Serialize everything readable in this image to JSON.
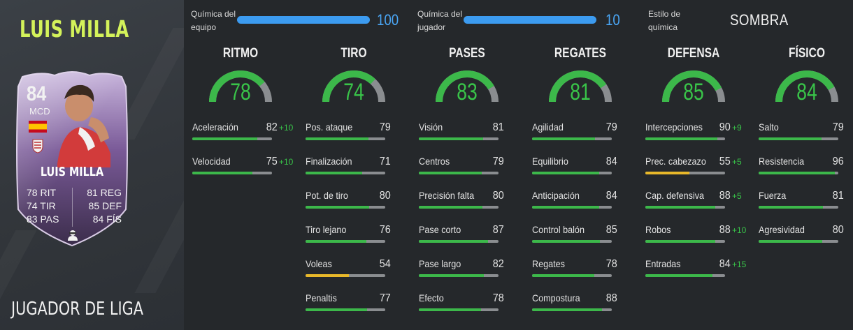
{
  "player": {
    "name_title": "LUIS MILLA",
    "card_type": "JUGADOR DE LIGA",
    "card": {
      "rating": "84",
      "position": "MCD",
      "name": "LUIS MILLA",
      "stats": [
        {
          "left": "78 RIT",
          "right": "81 REG"
        },
        {
          "left": "74 TIR",
          "right": "85 DEF"
        },
        {
          "left": "83 PAS",
          "right": "84 FÍS"
        }
      ],
      "flag_colors": [
        "#c60b1e",
        "#ffc400",
        "#c60b1e"
      ],
      "card_colors": [
        "#c9b6db",
        "#6f4f8c",
        "#3a2a4a"
      ]
    }
  },
  "chemistry": {
    "team_label_1": "Química del",
    "team_label_2": "equipo",
    "team_value": "100",
    "team_fraction": 1.0,
    "player_label_1": "Química del",
    "player_label_2": "jugador",
    "player_value": "10",
    "player_fraction": 1.0,
    "style_label_1": "Estilo de",
    "style_label_2": "química",
    "style_value": "SOMBRA",
    "bar_color": "#3c9bf0"
  },
  "categories": [
    {
      "title": "RITMO",
      "value": "78",
      "attributes": [
        {
          "name": "Aceleración",
          "value": "82",
          "boost": "+10"
        },
        {
          "name": "Velocidad",
          "value": "75",
          "boost": "+10"
        }
      ]
    },
    {
      "title": "TIRO",
      "value": "74",
      "attributes": [
        {
          "name": "Pos. ataque",
          "value": "79",
          "boost": ""
        },
        {
          "name": "Finalización",
          "value": "71",
          "boost": ""
        },
        {
          "name": "Pot. de tiro",
          "value": "80",
          "boost": ""
        },
        {
          "name": "Tiro lejano",
          "value": "76",
          "boost": ""
        },
        {
          "name": "Voleas",
          "value": "54",
          "boost": ""
        },
        {
          "name": "Penaltis",
          "value": "77",
          "boost": ""
        }
      ]
    },
    {
      "title": "PASES",
      "value": "83",
      "attributes": [
        {
          "name": "Visión",
          "value": "81",
          "boost": ""
        },
        {
          "name": "Centros",
          "value": "79",
          "boost": ""
        },
        {
          "name": "Precisión falta",
          "value": "80",
          "boost": ""
        },
        {
          "name": "Pase corto",
          "value": "87",
          "boost": ""
        },
        {
          "name": "Pase largo",
          "value": "82",
          "boost": ""
        },
        {
          "name": "Efecto",
          "value": "78",
          "boost": ""
        }
      ]
    },
    {
      "title": "REGATES",
      "value": "81",
      "attributes": [
        {
          "name": "Agilidad",
          "value": "79",
          "boost": ""
        },
        {
          "name": "Equilibrio",
          "value": "84",
          "boost": ""
        },
        {
          "name": "Anticipación",
          "value": "84",
          "boost": ""
        },
        {
          "name": "Control balón",
          "value": "85",
          "boost": ""
        },
        {
          "name": "Regates",
          "value": "78",
          "boost": ""
        },
        {
          "name": "Compostura",
          "value": "88",
          "boost": ""
        }
      ]
    },
    {
      "title": "DEFENSA",
      "value": "85",
      "attributes": [
        {
          "name": "Intercepciones",
          "value": "90",
          "boost": "+9"
        },
        {
          "name": "Prec. cabezazo",
          "value": "55",
          "boost": "+5"
        },
        {
          "name": "Cap. defensiva",
          "value": "88",
          "boost": "+5"
        },
        {
          "name": "Robos",
          "value": "88",
          "boost": "+10"
        },
        {
          "name": "Entradas",
          "value": "84",
          "boost": "+15"
        }
      ]
    },
    {
      "title": "FÍSICO",
      "value": "84",
      "attributes": [
        {
          "name": "Salto",
          "value": "79",
          "boost": ""
        },
        {
          "name": "Resistencia",
          "value": "96",
          "boost": ""
        },
        {
          "name": "Fuerza",
          "value": "81",
          "boost": ""
        },
        {
          "name": "Agresividad",
          "value": "80",
          "boost": ""
        }
      ]
    }
  ],
  "colors": {
    "high": "#3cb84a",
    "mid": "#e8b82a",
    "track": "#8a8d90",
    "gauge_value": "#39c449",
    "title_accent": "#d3f25a"
  }
}
